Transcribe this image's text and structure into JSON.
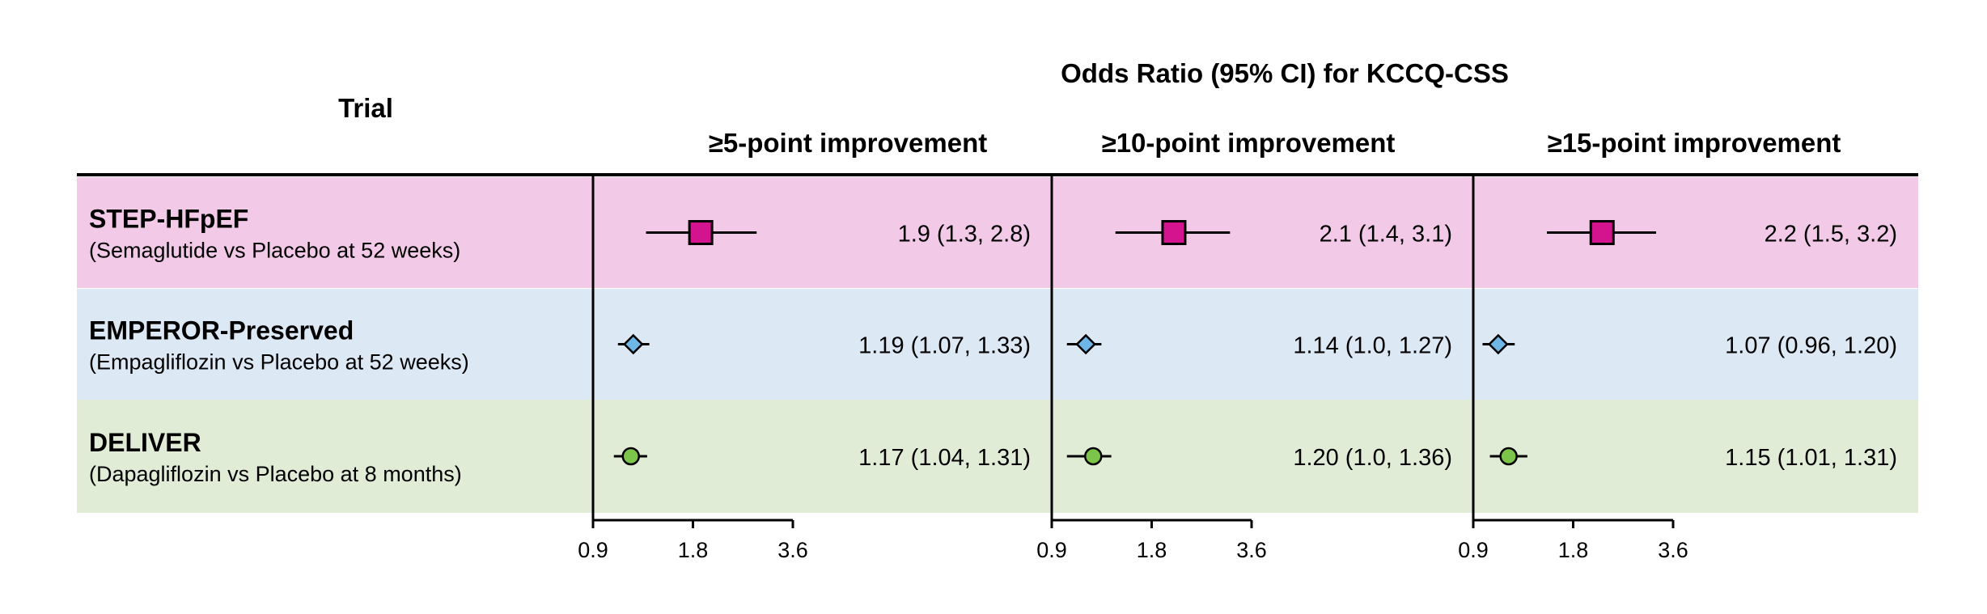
{
  "header": {
    "trial_label": "Trial",
    "overall_title": "Odds Ratio (95% CI) for KCCQ-CSS"
  },
  "chart_data": {
    "type": "forest",
    "x_scale": "log",
    "x_ticks": [
      "0.9",
      "1.8",
      "3.6"
    ],
    "x_tick_values": [
      0.9,
      1.8,
      3.6
    ],
    "xlim": [
      0.9,
      3.6
    ],
    "panels": [
      {
        "title": "≥5-point improvement"
      },
      {
        "title": "≥10-point improvement"
      },
      {
        "title": "≥15-point improvement"
      }
    ],
    "trials": [
      {
        "name": "STEP-HFpEF",
        "detail": "(Semaglutide  vs Placebo at 52 weeks)",
        "row_color": "#f3c9e8",
        "marker": "square",
        "marker_color": "#d4148f",
        "estimates": [
          {
            "or": 1.9,
            "lo": 1.3,
            "hi": 2.8,
            "label": "1.9 (1.3, 2.8)"
          },
          {
            "or": 2.1,
            "lo": 1.4,
            "hi": 3.1,
            "label": "2.1 (1.4, 3.1)"
          },
          {
            "or": 2.2,
            "lo": 1.5,
            "hi": 3.2,
            "label": "2.2 (1.5, 3.2)"
          }
        ]
      },
      {
        "name": "EMPEROR-Preserved",
        "detail": "(Empagliflozin  vs Placebo at 52 weeks)",
        "row_color": "#dde8f5",
        "marker": "diamond",
        "marker_color": "#6eb6e6",
        "estimates": [
          {
            "or": 1.19,
            "lo": 1.07,
            "hi": 1.33,
            "label": "1.19 (1.07, 1.33)"
          },
          {
            "or": 1.14,
            "lo": 1.0,
            "hi": 1.27,
            "label": "1.14 (1.0, 1.27)"
          },
          {
            "or": 1.07,
            "lo": 0.96,
            "hi": 1.2,
            "label": "1.07 (0.96, 1.20)"
          }
        ]
      },
      {
        "name": "DELIVER",
        "detail": "(Dapagliflozin  vs Placebo at 8 months)",
        "row_color": "#e1ecd6",
        "marker": "circle",
        "marker_color": "#7cc44a",
        "estimates": [
          {
            "or": 1.17,
            "lo": 1.04,
            "hi": 1.31,
            "label": "1.17 (1.04, 1.31)"
          },
          {
            "or": 1.2,
            "lo": 1.0,
            "hi": 1.36,
            "label": "1.20 (1.0, 1.36)"
          },
          {
            "or": 1.15,
            "lo": 1.01,
            "hi": 1.31,
            "label": "1.15 (1.01, 1.31)"
          }
        ]
      }
    ]
  }
}
